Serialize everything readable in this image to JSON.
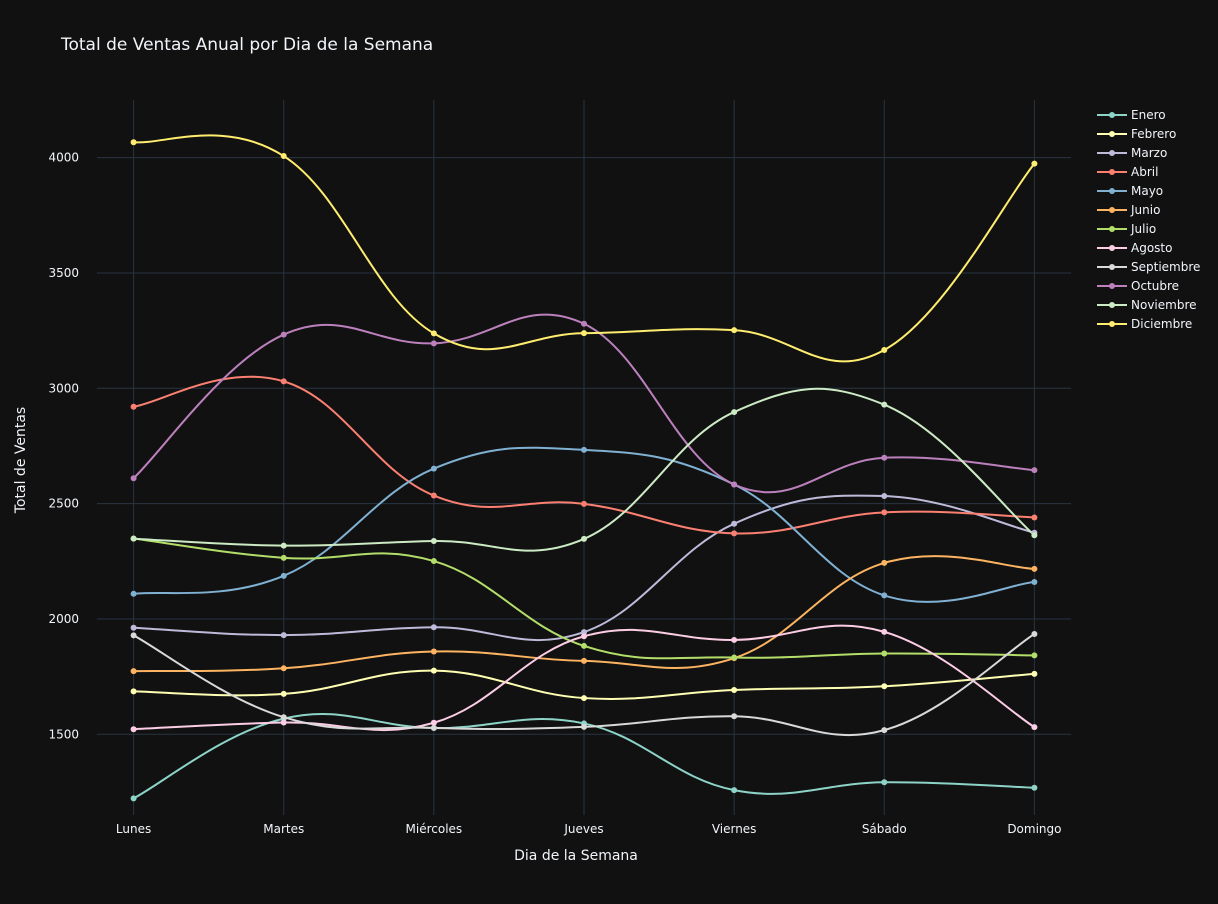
{
  "chart_data": {
    "type": "line",
    "title": "Total de Ventas Anual por Dia de la Semana",
    "xlabel": "Dia de la Semana",
    "ylabel": "Total de Ventas",
    "categories": [
      "Lunes",
      "Martes",
      "Miércoles",
      "Jueves",
      "Viernes",
      "Sábado",
      "Domingo"
    ],
    "ylim": [
      1150,
      4250
    ],
    "yticks": [
      1500,
      2000,
      2500,
      3000,
      3500,
      4000
    ],
    "grid": true,
    "legend_position": "right",
    "line_shape": "spline",
    "series": [
      {
        "name": "Enero",
        "color": "#8dd3c7",
        "values": [
          1222,
          1568,
          1527,
          1547,
          1258,
          1292,
          1268
        ]
      },
      {
        "name": "Febrero",
        "color": "#ffffb3",
        "values": [
          1686,
          1675,
          1776,
          1657,
          1692,
          1708,
          1762
        ]
      },
      {
        "name": "Marzo",
        "color": "#bebada",
        "values": [
          1962,
          1930,
          1964,
          1943,
          2413,
          2533,
          2374
        ]
      },
      {
        "name": "Abril",
        "color": "#fb8072",
        "values": [
          2920,
          3030,
          2535,
          2499,
          2371,
          2462,
          2440
        ]
      },
      {
        "name": "Mayo",
        "color": "#80b1d3",
        "values": [
          2109,
          2187,
          2652,
          2733,
          2583,
          2102,
          2160
        ]
      },
      {
        "name": "Junio",
        "color": "#fdb462",
        "values": [
          1774,
          1786,
          1859,
          1818,
          1830,
          2243,
          2217
        ]
      },
      {
        "name": "Julio",
        "color": "#b3de69",
        "values": [
          2349,
          2265,
          2251,
          1883,
          1833,
          1850,
          1842
        ]
      },
      {
        "name": "Agosto",
        "color": "#fccde5",
        "values": [
          1522,
          1551,
          1550,
          1925,
          1909,
          1944,
          1531
        ]
      },
      {
        "name": "Septiembre",
        "color": "#d9d9d9",
        "values": [
          1929,
          1574,
          1528,
          1532,
          1578,
          1518,
          1935
        ]
      },
      {
        "name": "Octubre",
        "color": "#bc80bd",
        "values": [
          2610,
          3233,
          3195,
          3280,
          2583,
          2699,
          2645
        ]
      },
      {
        "name": "Noviembre",
        "color": "#ccebc5",
        "values": [
          2348,
          2318,
          2338,
          2347,
          2897,
          2929,
          2363
        ]
      },
      {
        "name": "Diciembre",
        "color": "#ffed6f",
        "values": [
          4067,
          4007,
          3238,
          3239,
          3252,
          3166,
          3974
        ]
      }
    ]
  }
}
